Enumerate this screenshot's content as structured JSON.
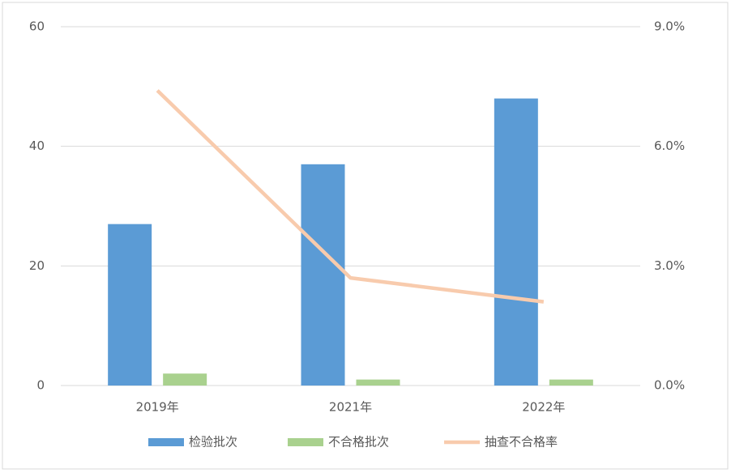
{
  "chart_data": {
    "type": "bar",
    "categories": [
      "2019年",
      "2021年",
      "2022年"
    ],
    "series": [
      {
        "name": "检验批次",
        "color": "#5b9bd5",
        "values": [
          27,
          37,
          48
        ]
      },
      {
        "name": "不合格批次",
        "color": "#a9d18e",
        "values": [
          2,
          1,
          1
        ]
      },
      {
        "name": "抽查不合格率",
        "color": "#f8cbad",
        "type": "line",
        "axis": "y2",
        "values": [
          7.4,
          2.7,
          2.1
        ]
      }
    ],
    "ylim": [
      0,
      60
    ],
    "yticks": [
      0,
      20,
      40,
      60
    ],
    "y2lim": [
      0,
      9
    ],
    "y2ticks": [
      {
        "value": 0,
        "label": "0.0%"
      },
      {
        "value": 3,
        "label": "3.0%"
      },
      {
        "value": 6,
        "label": "6.0%"
      },
      {
        "value": 9,
        "label": "9.0%"
      }
    ],
    "grid": true,
    "legend": "bottom"
  }
}
